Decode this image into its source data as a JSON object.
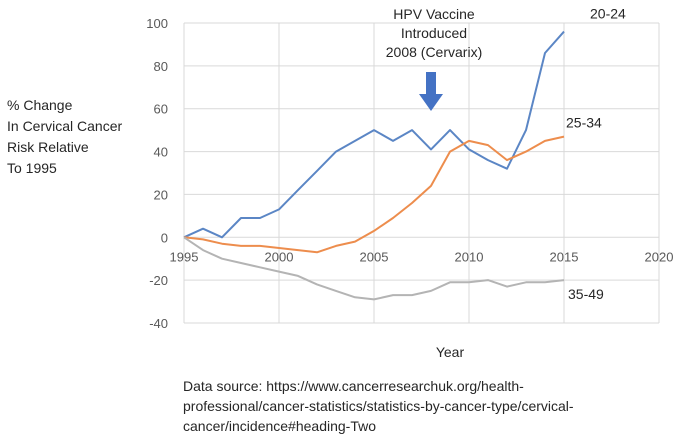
{
  "chart_data": {
    "type": "line",
    "ylabel_lines": [
      "% Change",
      "In Cervical Cancer",
      "Risk Relative",
      "To 1995"
    ],
    "xlabel": "Year",
    "xlim": [
      1995,
      2020
    ],
    "ylim": [
      -40,
      100
    ],
    "x_ticks": [
      1995,
      2000,
      2005,
      2010,
      2015,
      2020
    ],
    "y_ticks": [
      -40,
      -20,
      0,
      20,
      40,
      60,
      80,
      100
    ],
    "grid": true,
    "series": [
      {
        "name": "20-24",
        "color": "#5b86c5",
        "x": [
          1995,
          1996,
          1997,
          1998,
          1999,
          2000,
          2001,
          2002,
          2003,
          2004,
          2005,
          2006,
          2007,
          2008,
          2009,
          2010,
          2011,
          2012,
          2013,
          2014,
          2015
        ],
        "y": [
          0,
          4,
          0,
          9,
          9,
          13,
          22,
          31,
          40,
          45,
          50,
          45,
          50,
          41,
          50,
          41,
          36,
          32,
          50,
          86,
          96
        ]
      },
      {
        "name": "25-34",
        "color": "#ed8d4d",
        "x": [
          1995,
          1996,
          1997,
          1998,
          1999,
          2000,
          2001,
          2002,
          2003,
          2004,
          2005,
          2006,
          2007,
          2008,
          2009,
          2010,
          2011,
          2012,
          2013,
          2014,
          2015
        ],
        "y": [
          0,
          -1,
          -3,
          -4,
          -4,
          -5,
          -6,
          -7,
          -4,
          -2,
          3,
          9,
          16,
          24,
          40,
          45,
          43,
          36,
          40,
          45,
          47
        ]
      },
      {
        "name": "35-49",
        "color": "#b4b4b4",
        "x": [
          1995,
          1996,
          1997,
          1998,
          1999,
          2000,
          2001,
          2002,
          2003,
          2004,
          2005,
          2006,
          2007,
          2008,
          2009,
          2010,
          2011,
          2012,
          2013,
          2014,
          2015
        ],
        "y": [
          0,
          -6,
          -10,
          -12,
          -14,
          -16,
          -18,
          -22,
          -25,
          -28,
          -29,
          -27,
          -27,
          -25,
          -21,
          -21,
          -20,
          -23,
          -21,
          -21,
          -20
        ]
      }
    ],
    "annotation": {
      "lines": [
        "HPV Vaccine",
        "Introduced",
        "2008 (Cervarix)"
      ],
      "arrow_x": 2008,
      "arrow_color": "#4472c4"
    }
  },
  "source_lines": [
    "Data source: https://www.cancerresearchuk.org/health-",
    "professional/cancer-statistics/statistics-by-cancer-type/cervical-",
    "cancer/incidence#heading-Two"
  ]
}
